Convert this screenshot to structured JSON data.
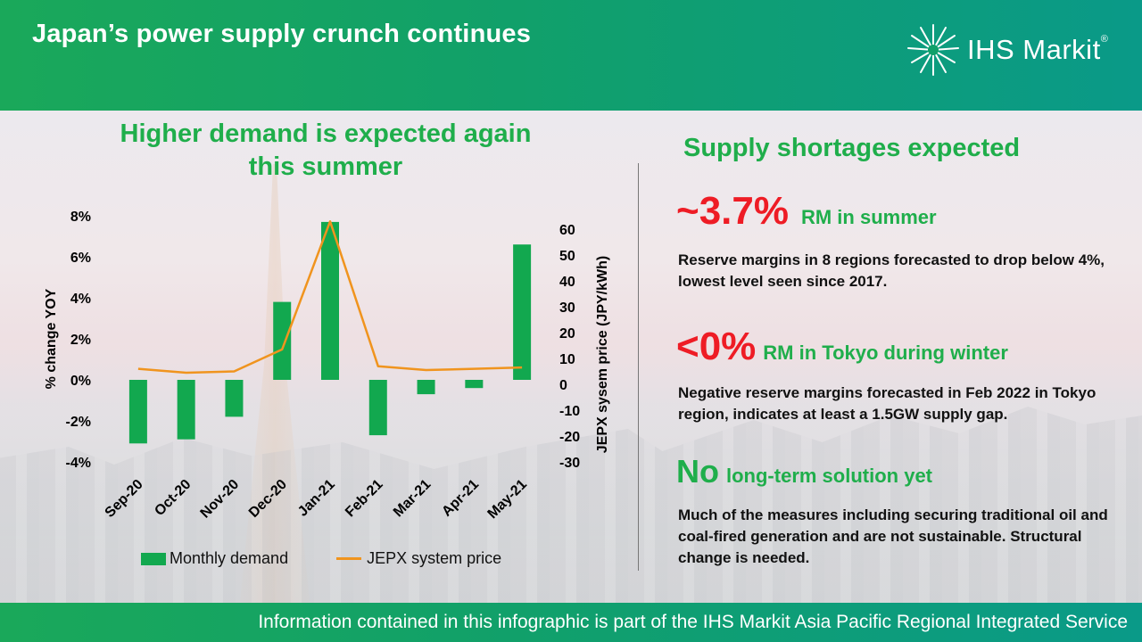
{
  "header": {
    "title": "Japan’s power supply crunch continues",
    "logo_text": "IHS Markit",
    "logo_reg": "®"
  },
  "left_panel": {
    "title_line1": "Higher demand is expected again",
    "title_line2": "this summer"
  },
  "chart_data": {
    "type": "bar",
    "categories": [
      "Sep-20",
      "Oct-20",
      "Nov-20",
      "Dec-20",
      "Jan-21",
      "Feb-21",
      "Mar-21",
      "Apr-21",
      "May-21"
    ],
    "series": [
      {
        "name": "Monthly demand",
        "type": "bar",
        "axis": "left",
        "values": [
          -3.1,
          -2.9,
          -1.8,
          3.8,
          7.7,
          -2.7,
          -0.7,
          -0.4,
          6.6
        ]
      },
      {
        "name": "JEPX system price",
        "type": "line",
        "axis": "right",
        "values": [
          6,
          4.5,
          5,
          13.5,
          63,
          7,
          5.5,
          6,
          6.5
        ]
      }
    ],
    "ylabel": "% change YOY",
    "y2label": "JEPX sysem price (JPY/kWh)",
    "ylim": [
      -4,
      8
    ],
    "y2lim": [
      -30,
      60
    ],
    "yticks": [
      "-4%",
      "-2%",
      "0%",
      "2%",
      "4%",
      "6%",
      "8%"
    ],
    "y2ticks": [
      "-30",
      "-20",
      "-10",
      "0",
      "10",
      "20",
      "30",
      "40",
      "50",
      "60"
    ],
    "legend_position": "bottom",
    "colors": {
      "bar": "#12a84f",
      "line": "#f0941e"
    }
  },
  "right_panel": {
    "title": "Supply shortages expected",
    "stats": [
      {
        "big": "~3.7%",
        "big_color": "#ee1c25",
        "sub": "RM in summer",
        "desc": "Reserve margins in 8 regions forecasted to drop below 4%, lowest level seen since 2017."
      },
      {
        "big": "<0%",
        "big_color": "#ee1c25",
        "sub": "RM in Tokyo during winter",
        "desc": "Negative reserve margins forecasted in Feb 2022 in Tokyo region, indicates at least a 1.5GW supply gap."
      },
      {
        "big": "No",
        "big_color": "#1fae4b",
        "sub": "long-term solution yet",
        "desc": "Much of the measures including securing traditional oil and coal-fired generation and are not sustainable. Structural change is needed."
      }
    ]
  },
  "footer": {
    "note": "Information contained in this infographic is part of the IHS Markit Asia Pacific Regional Integrated Service"
  }
}
